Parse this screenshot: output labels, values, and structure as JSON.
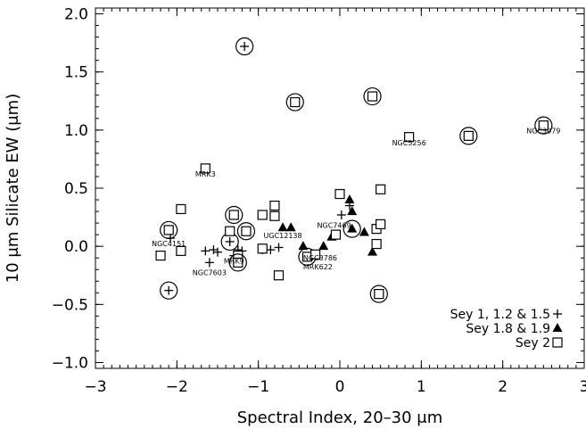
{
  "chart_data": {
    "type": "scatter",
    "xlabel": "Spectral Index, 20–30 μm",
    "ylabel": "10 μm Silicate EW (μm)",
    "xlim": [
      -3,
      3
    ],
    "ylim": [
      -1.05,
      2.05
    ],
    "x_ticks": [
      -3,
      -2,
      -1,
      0,
      1,
      2,
      3
    ],
    "x_tick_labels": [
      "−3",
      "−2",
      "−1",
      "0",
      "1",
      "2",
      "3"
    ],
    "y_ticks": [
      -1.0,
      -0.5,
      0.0,
      0.5,
      1.0,
      1.5,
      2.0
    ],
    "y_tick_labels": [
      "−1.0",
      "−0.5",
      "0.0",
      "0.5",
      "1.0",
      "1.5",
      "2.0"
    ],
    "legend_position": "bottom-right",
    "series": [
      {
        "name": "Sey 1, 1.2 & 1.5",
        "marker": "plus",
        "points": [
          {
            "x": -1.17,
            "y": 1.72,
            "circled": true
          },
          {
            "x": -2.1,
            "y": -0.38,
            "circled": true
          },
          {
            "x": -2.08,
            "y": 0.07
          },
          {
            "x": -1.65,
            "y": -0.04
          },
          {
            "x": -1.6,
            "y": -0.14
          },
          {
            "x": -1.55,
            "y": -0.03
          },
          {
            "x": -1.5,
            "y": -0.05
          },
          {
            "x": -1.35,
            "y": 0.04,
            "circled": true
          },
          {
            "x": -1.3,
            "y": -0.08
          },
          {
            "x": -1.25,
            "y": -0.03
          },
          {
            "x": -1.2,
            "y": -0.04
          },
          {
            "x": -0.95,
            "y": -0.03
          },
          {
            "x": -0.85,
            "y": -0.03
          },
          {
            "x": -0.75,
            "y": -0.01
          },
          {
            "x": 0.02,
            "y": 0.27
          },
          {
            "x": 0.12,
            "y": 0.35
          }
        ]
      },
      {
        "name": "Sey 1.8 & 1.9",
        "marker": "triangle",
        "points": [
          {
            "x": -0.7,
            "y": 0.16
          },
          {
            "x": -0.6,
            "y": 0.16
          },
          {
            "x": -0.45,
            "y": 0.0
          },
          {
            "x": -0.2,
            "y": 0.0
          },
          {
            "x": -0.1,
            "y": 0.08
          },
          {
            "x": 0.12,
            "y": 0.4
          },
          {
            "x": 0.15,
            "y": 0.3
          },
          {
            "x": 0.15,
            "y": 0.15,
            "circled": true
          },
          {
            "x": 0.3,
            "y": 0.12
          },
          {
            "x": 0.4,
            "y": -0.05
          }
        ]
      },
      {
        "name": "Sey 2",
        "marker": "square",
        "points": [
          {
            "x": -0.55,
            "y": 1.24,
            "circled": true
          },
          {
            "x": 0.4,
            "y": 1.29,
            "circled": true
          },
          {
            "x": 0.85,
            "y": 0.94
          },
          {
            "x": 1.58,
            "y": 0.95,
            "circled": true
          },
          {
            "x": 2.5,
            "y": 1.04,
            "circled": true
          },
          {
            "x": -1.65,
            "y": 0.67
          },
          {
            "x": -1.95,
            "y": 0.32
          },
          {
            "x": -2.1,
            "y": 0.14,
            "circled": true
          },
          {
            "x": -2.2,
            "y": -0.08
          },
          {
            "x": -1.95,
            "y": -0.04
          },
          {
            "x": -1.3,
            "y": 0.27,
            "circled": true
          },
          {
            "x": -1.35,
            "y": 0.13
          },
          {
            "x": -1.15,
            "y": 0.13,
            "circled": true
          },
          {
            "x": -1.25,
            "y": -0.08
          },
          {
            "x": -1.25,
            "y": -0.14,
            "circled": true
          },
          {
            "x": -0.95,
            "y": 0.27
          },
          {
            "x": -0.8,
            "y": 0.35
          },
          {
            "x": -0.8,
            "y": 0.26
          },
          {
            "x": -0.95,
            "y": -0.02
          },
          {
            "x": -0.75,
            "y": -0.25
          },
          {
            "x": -0.4,
            "y": -0.09,
            "circled": true
          },
          {
            "x": -0.3,
            "y": -0.07
          },
          {
            "x": -0.05,
            "y": 0.1
          },
          {
            "x": 0.0,
            "y": 0.45
          },
          {
            "x": 0.45,
            "y": 0.15
          },
          {
            "x": 0.45,
            "y": 0.02
          },
          {
            "x": 0.5,
            "y": 0.49
          },
          {
            "x": 0.5,
            "y": 0.19
          },
          {
            "x": 0.48,
            "y": -0.41,
            "circled": true
          }
        ]
      }
    ],
    "annotations": [
      {
        "text": "MRK3",
        "x": -1.65,
        "y": 0.6,
        "anchor": "middle"
      },
      {
        "text": "NGC5256",
        "x": 0.85,
        "y": 0.87,
        "anchor": "middle"
      },
      {
        "text": "NGC3079",
        "x": 2.5,
        "y": 0.97,
        "anchor": "middle"
      },
      {
        "text": "NGC4151",
        "x": -2.1,
        "y": 0.0,
        "anchor": "middle"
      },
      {
        "text": "UGC12138",
        "x": -0.7,
        "y": 0.07,
        "anchor": "middle"
      },
      {
        "text": "NGC7469",
        "x": -0.07,
        "y": 0.16,
        "anchor": "middle"
      },
      {
        "text": "NGC3786",
        "x": -0.45,
        "y": -0.12,
        "anchor": "start"
      },
      {
        "text": "MRK622",
        "x": -0.45,
        "y": -0.2,
        "anchor": "start"
      },
      {
        "text": "MRK9",
        "x": -1.3,
        "y": -0.15,
        "anchor": "middle"
      },
      {
        "text": "NGC7603",
        "x": -1.6,
        "y": -0.25,
        "anchor": "middle"
      }
    ]
  }
}
